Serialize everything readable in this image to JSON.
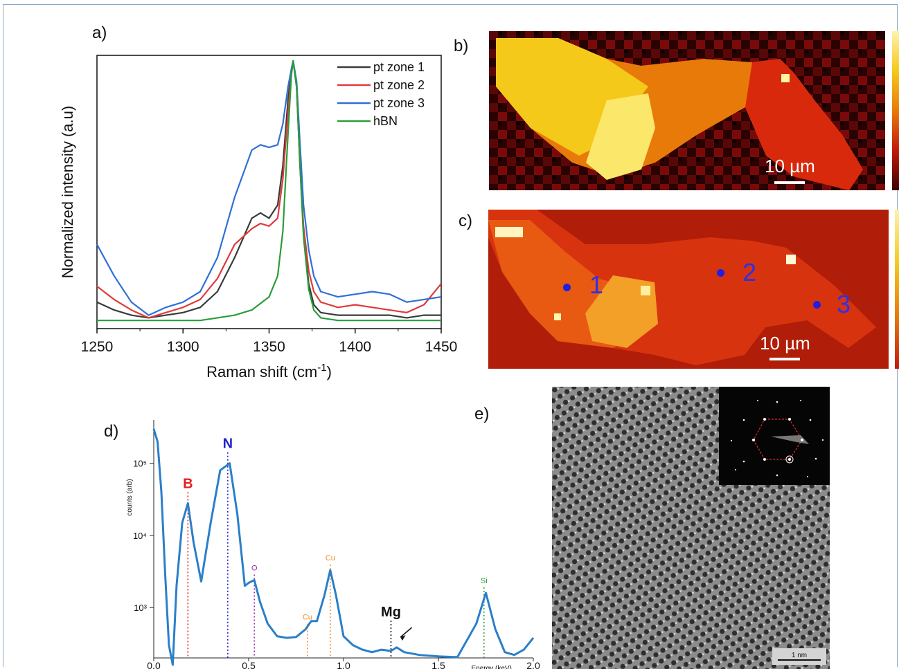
{
  "panels": {
    "a": "a)",
    "b": "b)",
    "c": "c)",
    "d": "d)",
    "e": "e)"
  },
  "chart_data": [
    {
      "type": "line",
      "panel": "a",
      "xlabel": "Raman shift (cm",
      "xlabel_sup": "-1",
      "xlabel_end": ")",
      "ylabel": "Normalized intensity (a.u)",
      "xlim": [
        1250,
        1450
      ],
      "ylim": [
        0,
        1
      ],
      "xticks": [
        "1250",
        "1300",
        "1350",
        "1400",
        "1450"
      ],
      "legend_position": "top-right",
      "series": [
        {
          "name": "pt zone 1",
          "color": "#3a3a3a",
          "x": [
            1250,
            1260,
            1270,
            1280,
            1290,
            1300,
            1310,
            1320,
            1330,
            1340,
            1345,
            1350,
            1355,
            1358,
            1361,
            1363,
            1364,
            1366,
            1368,
            1370,
            1373,
            1376,
            1380,
            1390,
            1400,
            1410,
            1420,
            1430,
            1440,
            1450
          ],
          "y": [
            0.08,
            0.05,
            0.03,
            0.02,
            0.03,
            0.04,
            0.06,
            0.12,
            0.25,
            0.4,
            0.42,
            0.4,
            0.45,
            0.6,
            0.85,
            0.97,
            1.0,
            0.9,
            0.6,
            0.35,
            0.15,
            0.07,
            0.04,
            0.03,
            0.03,
            0.03,
            0.03,
            0.02,
            0.03,
            0.03
          ]
        },
        {
          "name": "pt zone 2",
          "color": "#e03a3a",
          "x": [
            1250,
            1260,
            1270,
            1280,
            1290,
            1300,
            1310,
            1320,
            1330,
            1340,
            1345,
            1350,
            1355,
            1358,
            1361,
            1363,
            1364,
            1366,
            1368,
            1370,
            1373,
            1376,
            1380,
            1390,
            1400,
            1410,
            1420,
            1430,
            1440,
            1450
          ],
          "y": [
            0.14,
            0.09,
            0.05,
            0.02,
            0.04,
            0.06,
            0.09,
            0.17,
            0.3,
            0.36,
            0.38,
            0.37,
            0.4,
            0.55,
            0.8,
            0.95,
            1.0,
            0.9,
            0.6,
            0.37,
            0.2,
            0.12,
            0.08,
            0.06,
            0.07,
            0.06,
            0.05,
            0.04,
            0.07,
            0.15
          ]
        },
        {
          "name": "pt zone 3",
          "color": "#2f6fd6",
          "x": [
            1250,
            1260,
            1270,
            1280,
            1290,
            1300,
            1310,
            1320,
            1330,
            1340,
            1345,
            1350,
            1355,
            1358,
            1361,
            1363,
            1364,
            1366,
            1368,
            1370,
            1373,
            1376,
            1380,
            1390,
            1400,
            1410,
            1420,
            1430,
            1440,
            1450
          ],
          "y": [
            0.3,
            0.18,
            0.08,
            0.03,
            0.06,
            0.08,
            0.12,
            0.25,
            0.48,
            0.66,
            0.68,
            0.67,
            0.68,
            0.76,
            0.9,
            0.97,
            1.0,
            0.92,
            0.68,
            0.45,
            0.28,
            0.18,
            0.12,
            0.1,
            0.11,
            0.12,
            0.11,
            0.08,
            0.09,
            0.1
          ]
        },
        {
          "name": "hBN",
          "color": "#2a9d3a",
          "x": [
            1250,
            1270,
            1290,
            1310,
            1320,
            1330,
            1340,
            1350,
            1355,
            1358,
            1361,
            1363,
            1364,
            1366,
            1368,
            1370,
            1373,
            1376,
            1380,
            1390,
            1410,
            1430,
            1450
          ],
          "y": [
            0.01,
            0.01,
            0.01,
            0.01,
            0.02,
            0.03,
            0.05,
            0.1,
            0.18,
            0.35,
            0.72,
            0.95,
            1.0,
            0.9,
            0.6,
            0.33,
            0.13,
            0.05,
            0.02,
            0.01,
            0.01,
            0.01,
            0.01
          ]
        }
      ]
    },
    {
      "type": "line",
      "panel": "d",
      "xlabel": "Energy (keV)",
      "ylabel": "counts (arb)",
      "y_scale": "log",
      "xlim": [
        0,
        2.0
      ],
      "ylim": [
        200,
        400000
      ],
      "xticks": [
        "0.0",
        "0.5",
        "1.0",
        "1.5",
        "2.0"
      ],
      "yticks": [
        "10⁵",
        "10⁴",
        "10³"
      ],
      "series": [
        {
          "name": "",
          "color": "#2a7fc9",
          "x": [
            0.0,
            0.02,
            0.04,
            0.06,
            0.08,
            0.1,
            0.12,
            0.15,
            0.18,
            0.21,
            0.25,
            0.3,
            0.35,
            0.4,
            0.44,
            0.48,
            0.5,
            0.53,
            0.56,
            0.6,
            0.65,
            0.7,
            0.75,
            0.8,
            0.83,
            0.86,
            0.9,
            0.93,
            0.96,
            1.0,
            1.05,
            1.1,
            1.15,
            1.2,
            1.25,
            1.28,
            1.32,
            1.4,
            1.5,
            1.6,
            1.7,
            1.75,
            1.8,
            1.85,
            1.9,
            1.95,
            2.0
          ],
          "y": [
            300000,
            200000,
            40000,
            3000,
            300,
            150,
            2000,
            15000,
            28000,
            8000,
            2300,
            15000,
            80000,
            100000,
            20000,
            2000,
            2200,
            2400,
            1200,
            600,
            400,
            380,
            390,
            500,
            650,
            650,
            1500,
            3300,
            1500,
            400,
            300,
            260,
            240,
            260,
            250,
            280,
            240,
            220,
            210,
            205,
            600,
            1600,
            500,
            240,
            220,
            260,
            380
          ]
        }
      ],
      "annotations": [
        {
          "label": "B",
          "x": 0.18,
          "color": "#e02020"
        },
        {
          "label": "N",
          "x": 0.39,
          "color": "#2020d0"
        },
        {
          "label": "O",
          "x": 0.53,
          "color": "#9a2aa8"
        },
        {
          "label": "Cu",
          "x": 0.81,
          "color": "#f08a2a"
        },
        {
          "label": "Cu",
          "x": 0.93,
          "color": "#f08a2a"
        },
        {
          "label": "Mg",
          "x": 1.25,
          "color": "#111111"
        },
        {
          "label": "Si",
          "x": 1.74,
          "color": "#2a9d3a"
        }
      ]
    }
  ],
  "maps": {
    "b": {
      "scale": "10 µm"
    },
    "c": {
      "scale": "10 µm",
      "points": [
        "1",
        "2",
        "3"
      ]
    }
  },
  "tem": {
    "scale": "1 nm"
  }
}
